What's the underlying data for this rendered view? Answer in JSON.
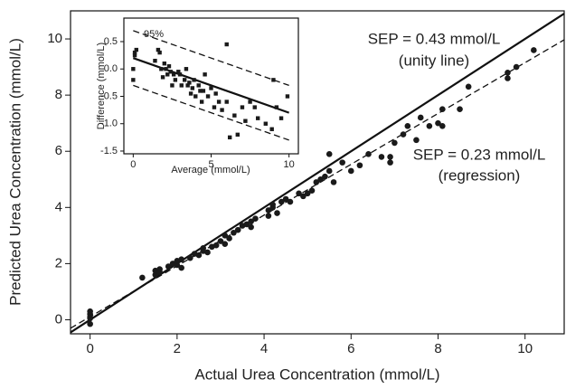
{
  "chart_data": [
    {
      "type": "scatter",
      "xlabel": "Actual Urea Concentration (mmol/L)",
      "ylabel": "Predicted Urea Concentration (mmol/L)",
      "xlim": [
        -0.45,
        10.9
      ],
      "ylim": [
        -0.5,
        11
      ],
      "xticks": [
        0,
        2,
        4,
        6,
        8,
        10
      ],
      "yticks": [
        0,
        2,
        4,
        6,
        8,
        10
      ],
      "marker": "circle",
      "color": "#1a1a1a",
      "x": [
        0,
        0,
        0,
        0,
        0,
        1.2,
        1.5,
        1.5,
        1.6,
        1.6,
        1.8,
        1.9,
        2.0,
        2.0,
        2.1,
        2.1,
        2.3,
        2.4,
        2.5,
        2.6,
        2.6,
        2.7,
        2.8,
        2.9,
        3.0,
        3.1,
        3.1,
        3.2,
        3.3,
        3.4,
        3.5,
        3.6,
        3.7,
        3.8,
        3.7,
        4.1,
        4.1,
        4.2,
        4.2,
        4.3,
        4.4,
        4.5,
        4.6,
        4.8,
        4.9,
        5.0,
        5.1,
        5.2,
        5.3,
        5.4,
        5.5,
        5.5,
        5.6,
        5.8,
        6.0,
        6.2,
        6.4,
        6.7,
        6.9,
        6.9,
        7.0,
        7.2,
        7.3,
        7.5,
        7.6,
        7.8,
        8.0,
        8.1,
        8.1,
        8.5,
        8.7,
        9.6,
        9.6,
        9.8,
        10.2
      ],
      "y": [
        -0.15,
        0.05,
        0.2,
        0.3,
        0.1,
        1.5,
        1.6,
        1.75,
        1.8,
        1.7,
        1.9,
        2.0,
        2.1,
        1.95,
        2.15,
        1.85,
        2.2,
        2.35,
        2.3,
        2.45,
        2.55,
        2.4,
        2.6,
        2.65,
        2.8,
        2.7,
        3.0,
        2.9,
        3.1,
        3.2,
        3.35,
        3.4,
        3.5,
        3.6,
        3.3,
        3.7,
        3.9,
        4.0,
        4.1,
        3.8,
        4.2,
        4.3,
        4.2,
        4.5,
        4.4,
        4.5,
        4.6,
        4.9,
        5.0,
        5.1,
        5.3,
        5.9,
        4.9,
        5.6,
        5.3,
        5.5,
        5.9,
        5.8,
        5.6,
        5.8,
        6.3,
        6.6,
        6.9,
        6.4,
        7.2,
        6.9,
        7.0,
        7.5,
        6.9,
        7.5,
        8.3,
        8.6,
        8.8,
        9.0,
        9.6
      ],
      "lines": [
        {
          "x": [
            -0.45,
            10.9
          ],
          "y": [
            -0.45,
            10.9
          ],
          "dash": false
        },
        {
          "x": [
            -0.45,
            10.9
          ],
          "y": [
            -0.3,
            9.97
          ],
          "dash": true
        }
      ],
      "annotations": [
        "SEP = 0.43 mmol/L",
        "(unity line)",
        "SEP = 0.23 mmol/L",
        "(regression)"
      ]
    },
    {
      "type": "scatter",
      "xlabel": "Average (mmol/L)",
      "ylabel": "Difference (mmol/L)",
      "xlim": [
        -0.6,
        10.6
      ],
      "ylim": [
        -1.55,
        0.93
      ],
      "xticks": [
        0,
        5,
        10
      ],
      "yticks": [
        0.5,
        {
          "value": 0,
          "label": "0.0"
        },
        -0.5,
        {
          "value": -1,
          "label": "-1.0"
        },
        -1.5
      ],
      "marker": "square",
      "color": "#1a1a1a",
      "x": [
        0,
        0,
        0.1,
        0.2,
        0.1,
        1.4,
        1.6,
        1.7,
        1.8,
        1.9,
        2.0,
        2.1,
        2.2,
        2.3,
        2.4,
        2.5,
        2.6,
        2.7,
        2.9,
        3.0,
        3.1,
        3.3,
        3.4,
        3.5,
        3.6,
        3.7,
        3.8,
        3.9,
        4.0,
        4.2,
        4.3,
        4.4,
        4.5,
        4.6,
        4.8,
        5.0,
        5.2,
        5.3,
        5.5,
        5.7,
        6.0,
        6.0,
        6.2,
        6.5,
        6.7,
        7.0,
        7.2,
        7.5,
        7.8,
        8.0,
        8.5,
        8.9,
        9.0,
        9.2,
        9.5,
        9.9
      ],
      "y": [
        -0.2,
        0.0,
        0.3,
        0.35,
        0.25,
        0.15,
        0.35,
        0.3,
        0.0,
        -0.15,
        0.1,
        0.0,
        -0.1,
        0.05,
        -0.05,
        -0.3,
        -0.1,
        -0.2,
        -0.05,
        -0.1,
        -0.3,
        -0.2,
        0.0,
        -0.3,
        -0.25,
        -0.45,
        -0.35,
        -0.2,
        -0.5,
        -0.3,
        -0.4,
        -0.6,
        -0.4,
        -0.1,
        -0.5,
        -0.35,
        -0.7,
        -0.45,
        -0.6,
        -0.75,
        -0.6,
        0.45,
        -1.25,
        -0.85,
        -1.2,
        -0.7,
        -0.95,
        -0.6,
        -0.7,
        -0.9,
        -1.0,
        -1.1,
        -0.2,
        -0.7,
        -0.9,
        -0.5
      ],
      "lines": [
        {
          "x": [
            0,
            10
          ],
          "y": [
            0.2,
            -0.8
          ],
          "dash": false
        },
        {
          "x": [
            0,
            10
          ],
          "y": [
            0.7,
            -0.3
          ],
          "dash": true
        },
        {
          "x": [
            0,
            10
          ],
          "y": [
            -0.3,
            -1.3
          ],
          "dash": true
        }
      ],
      "annotations": [
        "95%"
      ]
    }
  ]
}
